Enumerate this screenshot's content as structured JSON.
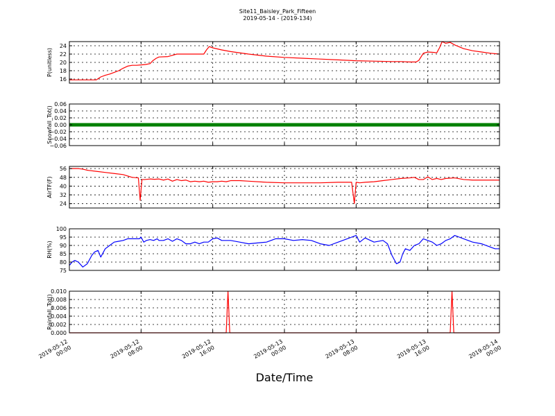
{
  "figure": {
    "title_line1": "Site11_Baisley_Park_Fifteen",
    "title_line2": "2019-05-14 - (2019-134)",
    "xlabel": "Date/Time"
  },
  "chart_data": [
    {
      "type": "line",
      "ylabel": "P(unitless)",
      "ylim": [
        15,
        25
      ],
      "yticks": [
        "16",
        "18",
        "20",
        "22",
        "24"
      ],
      "xlim": [
        0,
        48
      ],
      "xticks": [
        {
          "line1": "2019-05-12",
          "line2": "00:00"
        },
        {
          "line1": "2019-05-12",
          "line2": "08:00"
        },
        {
          "line1": "2019-05-12",
          "line2": "16:00"
        },
        {
          "line1": "2019-05-13",
          "line2": "00:00"
        },
        {
          "line1": "2019-05-13",
          "line2": "08:00"
        },
        {
          "line1": "2019-05-13",
          "line2": "16:00"
        },
        {
          "line1": "2019-05-14",
          "line2": "00:00"
        }
      ],
      "grid": true,
      "series": [
        {
          "color": "#ff0000",
          "x": [
            0,
            1,
            2,
            3,
            3.5,
            4,
            4.5,
            5,
            5.5,
            6,
            6.5,
            7,
            7.5,
            8,
            8.5,
            9,
            9.3,
            9.7,
            10,
            11,
            12,
            13,
            14,
            15,
            15.3,
            15.6,
            16,
            17,
            18,
            20,
            22,
            24,
            26,
            28,
            30,
            32,
            34,
            36,
            37,
            38,
            38.7,
            39,
            39.5,
            40,
            40.7,
            41,
            41.3,
            41.6,
            42,
            42.5,
            43,
            44,
            45,
            46,
            47,
            48
          ],
          "y": [
            15.8,
            15.8,
            15.8,
            15.8,
            16.5,
            16.9,
            17.2,
            17.6,
            18.0,
            18.6,
            19.1,
            19.3,
            19.3,
            19.4,
            19.5,
            19.7,
            20.4,
            21.0,
            21.3,
            21.4,
            22.0,
            22.0,
            22.0,
            22.0,
            23.0,
            23.8,
            23.5,
            23.0,
            22.6,
            22.0,
            21.5,
            21.2,
            21.0,
            20.8,
            20.6,
            20.4,
            20.3,
            20.2,
            20.2,
            20.1,
            20.1,
            20.5,
            22.2,
            22.5,
            22.4,
            22.3,
            23.5,
            25.0,
            24.6,
            24.8,
            24.2,
            23.3,
            22.8,
            22.5,
            22.2,
            22.0
          ]
        }
      ]
    },
    {
      "type": "line",
      "ylabel": "Snowfall_Tot()",
      "ylim": [
        -0.06,
        0.06
      ],
      "yticks": [
        "0.06",
        "0.04",
        "0.02",
        "0.00",
        "−0.02",
        "−0.04",
        "−0.06"
      ],
      "xlim": [
        0,
        48
      ],
      "grid": true,
      "series": [
        {
          "color": "#008000",
          "x": [
            0,
            48
          ],
          "y": [
            0,
            0
          ]
        }
      ]
    },
    {
      "type": "line",
      "ylabel": "AirTF(F)",
      "ylim": [
        20,
        58
      ],
      "yticks": [
        "56",
        "48",
        "40",
        "32",
        "24"
      ],
      "xlim": [
        0,
        48
      ],
      "grid": true,
      "series": [
        {
          "color": "#ff0000",
          "x": [
            0,
            1,
            1.5,
            2,
            3,
            4,
            5,
            6,
            7,
            7.7,
            7.9,
            8.1,
            8.4,
            9,
            9.5,
            10,
            10.5,
            11,
            11.5,
            12,
            12.5,
            13,
            13.5,
            14,
            14.5,
            15,
            15.5,
            16,
            16.5,
            17,
            17.5,
            18,
            19,
            20,
            22,
            24,
            26,
            28,
            30,
            31.5,
            31.8,
            32,
            32.4,
            33,
            34,
            35,
            36,
            37,
            38,
            38.5,
            39,
            39.5,
            40,
            40.5,
            41,
            41.5,
            42,
            43,
            44,
            45,
            46,
            47,
            48
          ],
          "y": [
            56,
            56,
            55.5,
            54.5,
            53.5,
            52.5,
            51.5,
            50.5,
            48,
            47.5,
            27,
            46,
            46,
            46.5,
            46.2,
            46.5,
            45.5,
            46.5,
            44.5,
            46,
            45,
            45.5,
            44,
            44.5,
            44,
            44.5,
            43.5,
            44,
            44,
            44.5,
            44,
            45,
            45,
            44.5,
            43.5,
            43,
            43,
            43,
            43.5,
            43.5,
            24,
            43.5,
            43,
            43.5,
            44,
            45,
            46,
            47,
            47.5,
            48,
            46,
            46,
            48.5,
            46,
            47,
            46,
            47,
            47.5,
            46,
            45.5,
            45.5,
            45.5,
            45.5
          ]
        }
      ]
    },
    {
      "type": "line",
      "ylabel": "RH(%)",
      "ylim": [
        75,
        100
      ],
      "yticks": [
        "100",
        "95",
        "90",
        "85",
        "80",
        "75"
      ],
      "xlim": [
        0,
        48
      ],
      "grid": true,
      "series": [
        {
          "color": "#0000ff",
          "x": [
            0,
            0.3,
            0.6,
            1,
            1.5,
            2,
            2.5,
            2.8,
            3.2,
            3.5,
            4,
            4.5,
            5,
            5.5,
            6,
            6.5,
            7,
            7.5,
            7.8,
            8,
            8.3,
            8.6,
            9,
            9.4,
            9.8,
            10,
            10.5,
            11,
            11.5,
            12,
            12.5,
            13,
            13.5,
            14,
            14.5,
            15,
            15.5,
            16,
            16.5,
            17,
            17.5,
            18,
            19,
            20,
            21,
            22,
            23,
            24,
            25,
            26,
            27,
            28,
            29,
            30,
            31,
            31.5,
            32,
            32.4,
            33,
            34,
            35,
            35.5,
            36,
            36.5,
            36.9,
            37.2,
            37.5,
            38,
            38.5,
            39,
            39.5,
            40,
            40.5,
            41,
            41.5,
            42,
            42.5,
            43,
            43.5,
            44,
            45,
            46,
            47,
            47.5,
            48
          ],
          "y": [
            78,
            80,
            81,
            80,
            77,
            79,
            84,
            86,
            87,
            83,
            88,
            90,
            92,
            92.5,
            93,
            94,
            94,
            94,
            94,
            95,
            92,
            93,
            93.5,
            93,
            94,
            93,
            93,
            94,
            92.5,
            94,
            93,
            91,
            91,
            92,
            91,
            92,
            92,
            94,
            94.5,
            93,
            93,
            93,
            92,
            91,
            91.5,
            92,
            94,
            94,
            93,
            93.5,
            93,
            91,
            90,
            92,
            94,
            95,
            96,
            92,
            94.5,
            92,
            93,
            91,
            84,
            79,
            80,
            85,
            88,
            87,
            90,
            91,
            94,
            93,
            92,
            90,
            91,
            93,
            94,
            96,
            95,
            94,
            92,
            91,
            89,
            88,
            88
          ]
        }
      ]
    },
    {
      "type": "line",
      "ylabel": "Rainfall_Tot()",
      "ylim": [
        0,
        0.01
      ],
      "yticks": [
        "0.010",
        "0.008",
        "0.006",
        "0.004",
        "0.002",
        "0.000"
      ],
      "xlim": [
        0,
        48
      ],
      "grid": true,
      "series": [
        {
          "color": "#ff0000",
          "x": [
            0,
            17.5,
            17.7,
            17.9,
            42.5,
            42.7,
            42.9,
            48
          ],
          "y": [
            0,
            0,
            0.01,
            0,
            0,
            0.01,
            0,
            0
          ]
        }
      ]
    }
  ]
}
